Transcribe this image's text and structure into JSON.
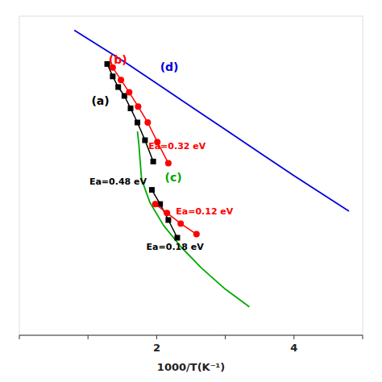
{
  "chart_data": {
    "type": "line",
    "xlabel": "1000/T(K⁻¹)",
    "xlim": [
      0,
      5
    ],
    "ylim": [
      -14,
      4
    ],
    "xticks": [
      {
        "value": 0,
        "label": null
      },
      {
        "value": 1,
        "label": null
      },
      2,
      {
        "value": 3,
        "label": null
      },
      4,
      {
        "value": 5,
        "label": null
      }
    ],
    "tick_labels": "x",
    "grid": false,
    "series": [
      {
        "color": "#0000dd",
        "x": [
          0.8,
          1.5,
          2.0,
          2.5,
          3.0,
          3.5,
          4.0,
          4.8
        ],
        "values": [
          3.2,
          1.5,
          0.2,
          -1.1,
          -2.4,
          -3.7,
          -5.0,
          -7.0
        ]
      },
      {
        "color": "#00aa00",
        "x": [
          1.72,
          1.74,
          1.78,
          1.9,
          2.1,
          2.35,
          2.65,
          3.0,
          3.35
        ],
        "values": [
          -2.5,
          -3.2,
          -5.2,
          -6.5,
          -7.8,
          -9.0,
          -10.2,
          -11.4,
          -12.4
        ]
      },
      {
        "color": "#000000",
        "marker": "square",
        "x": [
          1.28,
          1.36,
          1.44,
          1.53,
          1.62,
          1.72,
          1.83,
          1.95
        ],
        "values": [
          1.3,
          0.6,
          0.0,
          -0.5,
          -1.2,
          -2.0,
          -3.0,
          -4.2
        ]
      },
      {
        "color": "#000000",
        "marker": "square",
        "x": [
          1.93,
          2.05,
          2.17,
          2.3
        ],
        "values": [
          -5.8,
          -6.6,
          -7.5,
          -8.5
        ]
      },
      {
        "color": "#ff0000",
        "marker": "circle",
        "x": [
          1.36,
          1.48,
          1.6,
          1.73,
          1.87,
          2.01,
          2.17
        ],
        "values": [
          1.1,
          0.4,
          -0.3,
          -1.1,
          -2.0,
          -3.1,
          -4.3
        ]
      },
      {
        "color": "#ff0000",
        "marker": "circle",
        "x": [
          1.98,
          2.15,
          2.35,
          2.58
        ],
        "values": [
          -6.6,
          -7.1,
          -7.7,
          -8.3
        ]
      }
    ],
    "annotations": [
      {
        "text": "(a)",
        "x": 1.05,
        "y": -1.0,
        "color": "#000000"
      },
      {
        "text": "(b)",
        "x": 1.3,
        "y": 1.3,
        "color": "#ff0000"
      },
      {
        "text": "(c)",
        "x": 2.12,
        "y": -5.3,
        "color": "#00aa00"
      },
      {
        "text": "(d)",
        "x": 2.05,
        "y": 0.9,
        "color": "#0000dd"
      },
      {
        "text": "Ea=0.48 eV",
        "x": 1.02,
        "y": -5.5,
        "color": "#000000"
      },
      {
        "text": "Ea=0.18 eV",
        "x": 1.85,
        "y": -9.2,
        "color": "#000000"
      },
      {
        "text": "Ea=0.32 eV",
        "x": 1.88,
        "y": -3.5,
        "color": "#ff0000"
      },
      {
        "text": "Ea=0.12 eV",
        "x": 2.28,
        "y": -7.2,
        "color": "#ff0000"
      }
    ]
  }
}
